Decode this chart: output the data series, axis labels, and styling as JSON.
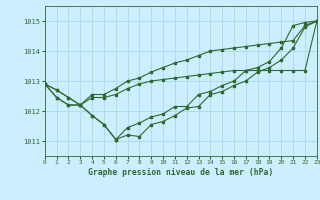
{
  "xlabel": "Graphe pression niveau de la mer (hPa)",
  "background_color": "#cceeff",
  "grid_color": "#aaddee",
  "line_color": "#2d6a2d",
  "xlim": [
    0,
    23
  ],
  "ylim": [
    1010.5,
    1015.5
  ],
  "yticks": [
    1011,
    1012,
    1013,
    1014,
    1015
  ],
  "xticks": [
    0,
    1,
    2,
    3,
    4,
    5,
    6,
    7,
    8,
    9,
    10,
    11,
    12,
    13,
    14,
    15,
    16,
    17,
    18,
    19,
    20,
    21,
    22,
    23
  ],
  "series": [
    [
      1012.9,
      1012.7,
      1012.45,
      1012.2,
      1011.85,
      1011.55,
      1011.05,
      1011.45,
      1011.6,
      1011.8,
      1011.9,
      1012.15,
      1012.15,
      1012.55,
      1012.65,
      1012.85,
      1013.0,
      1013.35,
      1013.45,
      1013.65,
      1014.1,
      1014.85,
      1014.95,
      1015.0
    ],
    [
      1012.9,
      1012.7,
      1012.45,
      1012.2,
      1011.85,
      1011.55,
      1011.05,
      1011.2,
      1011.15,
      1011.55,
      1011.65,
      1011.85,
      1012.1,
      1012.15,
      1012.55,
      1012.65,
      1012.85,
      1013.0,
      1013.3,
      1013.45,
      1013.7,
      1014.1,
      1014.8,
      1015.0
    ],
    [
      1012.9,
      1012.45,
      1012.2,
      1012.2,
      1012.45,
      1012.45,
      1012.55,
      1012.75,
      1012.9,
      1013.0,
      1013.05,
      1013.1,
      1013.15,
      1013.2,
      1013.25,
      1013.3,
      1013.35,
      1013.35,
      1013.35,
      1013.35,
      1013.35,
      1013.35,
      1013.35,
      1015.0
    ],
    [
      1012.9,
      1012.45,
      1012.2,
      1012.2,
      1012.55,
      1012.55,
      1012.75,
      1013.0,
      1013.1,
      1013.3,
      1013.45,
      1013.6,
      1013.7,
      1013.85,
      1014.0,
      1014.05,
      1014.1,
      1014.15,
      1014.2,
      1014.25,
      1014.3,
      1014.35,
      1014.85,
      1015.0
    ]
  ]
}
